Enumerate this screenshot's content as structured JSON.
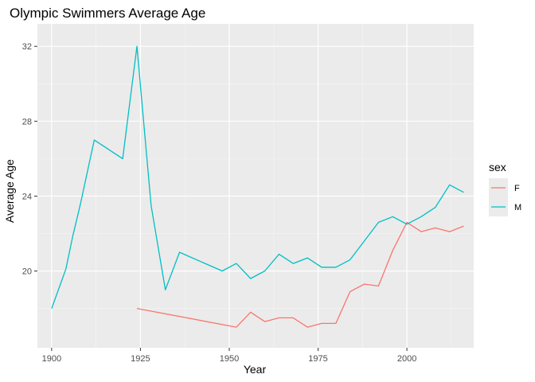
{
  "chart_data": {
    "type": "line",
    "title": "Olympic Swimmers Average Age",
    "xlabel": "Year",
    "ylabel": "Average Age",
    "xlim": [
      1896,
      2018.8
    ],
    "ylim": [
      15.9,
      33.2
    ],
    "x_ticks": [
      1900,
      1925,
      1950,
      1975,
      2000
    ],
    "x_tick_labels": [
      "1900",
      "1925",
      "1950",
      "1975",
      "2000"
    ],
    "y_ticks": [
      20,
      24,
      28,
      32
    ],
    "y_tick_labels": [
      "20",
      "24",
      "28",
      "32"
    ],
    "grid": true,
    "legend": {
      "title": "sex",
      "position": "right"
    },
    "series": [
      {
        "name": "F",
        "color": "#F8766D",
        "x": [
          1924,
          1952,
          1956,
          1960,
          1964,
          1968,
          1972,
          1976,
          1980,
          1984,
          1988,
          1992,
          1996,
          2000,
          2004,
          2008,
          2012,
          2016
        ],
        "y": [
          18.0,
          17.0,
          17.8,
          17.3,
          17.5,
          17.5,
          17.0,
          17.2,
          17.2,
          18.9,
          19.3,
          19.2,
          21.1,
          22.6,
          22.1,
          22.3,
          22.1,
          22.4
        ]
      },
      {
        "name": "M",
        "color": "#00BFC4",
        "x": [
          1900,
          1904,
          1906,
          1908,
          1912,
          1920,
          1924,
          1928,
          1932,
          1936,
          1948,
          1952,
          1956,
          1960,
          1964,
          1968,
          1972,
          1976,
          1980,
          1984,
          1988,
          1992,
          1996,
          2000,
          2004,
          2008,
          2012,
          2016
        ],
        "y": [
          18.0,
          20.1,
          21.9,
          23.5,
          27.0,
          26.0,
          32.0,
          23.5,
          19.0,
          21.0,
          20.0,
          20.4,
          19.6,
          20.0,
          20.9,
          20.4,
          20.7,
          20.2,
          20.2,
          20.6,
          21.6,
          22.6,
          22.9,
          22.5,
          22.9,
          23.4,
          24.6,
          24.2
        ]
      }
    ]
  }
}
